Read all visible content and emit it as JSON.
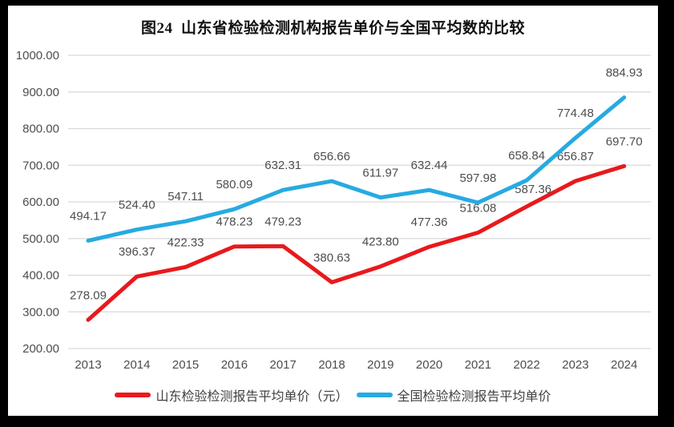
{
  "chart_data": {
    "type": "line",
    "title": "图24  山东省检验检测机构报告单价与全国平均数的比较",
    "xlabel": "",
    "ylabel": "",
    "categories": [
      "2013",
      "2014",
      "2015",
      "2016",
      "2017",
      "2018",
      "2019",
      "2020",
      "2021",
      "2022",
      "2023",
      "2024"
    ],
    "series": [
      {
        "id": "shandong",
        "name": "山东检验检测报告平均单价（元）",
        "color": "#e8191c",
        "values": [
          278.09,
          396.37,
          422.33,
          478.23,
          479.23,
          380.63,
          423.8,
          477.36,
          516.08,
          587.36,
          656.87,
          697.7
        ]
      },
      {
        "id": "national",
        "name": "全国检验检测报告平均单价",
        "color": "#27aae1",
        "values": [
          494.17,
          524.4,
          547.11,
          580.09,
          632.31,
          656.66,
          611.97,
          632.44,
          597.98,
          658.84,
          774.48,
          884.93
        ]
      }
    ],
    "ylim": [
      200,
      1000
    ],
    "ytick_step": 100,
    "ytick_labels": [
      "200.00",
      "300.00",
      "400.00",
      "500.00",
      "600.00",
      "700.00",
      "800.00",
      "900.00",
      "1000.00"
    ],
    "grid": true,
    "data_labels_shown": true,
    "legend_position": "bottom"
  },
  "colors": {
    "frame": "#000000",
    "panel": "#ffffff",
    "gridline": "#d9d9d9",
    "tick_text": "#4d4d4d",
    "title_text": "#111111"
  }
}
